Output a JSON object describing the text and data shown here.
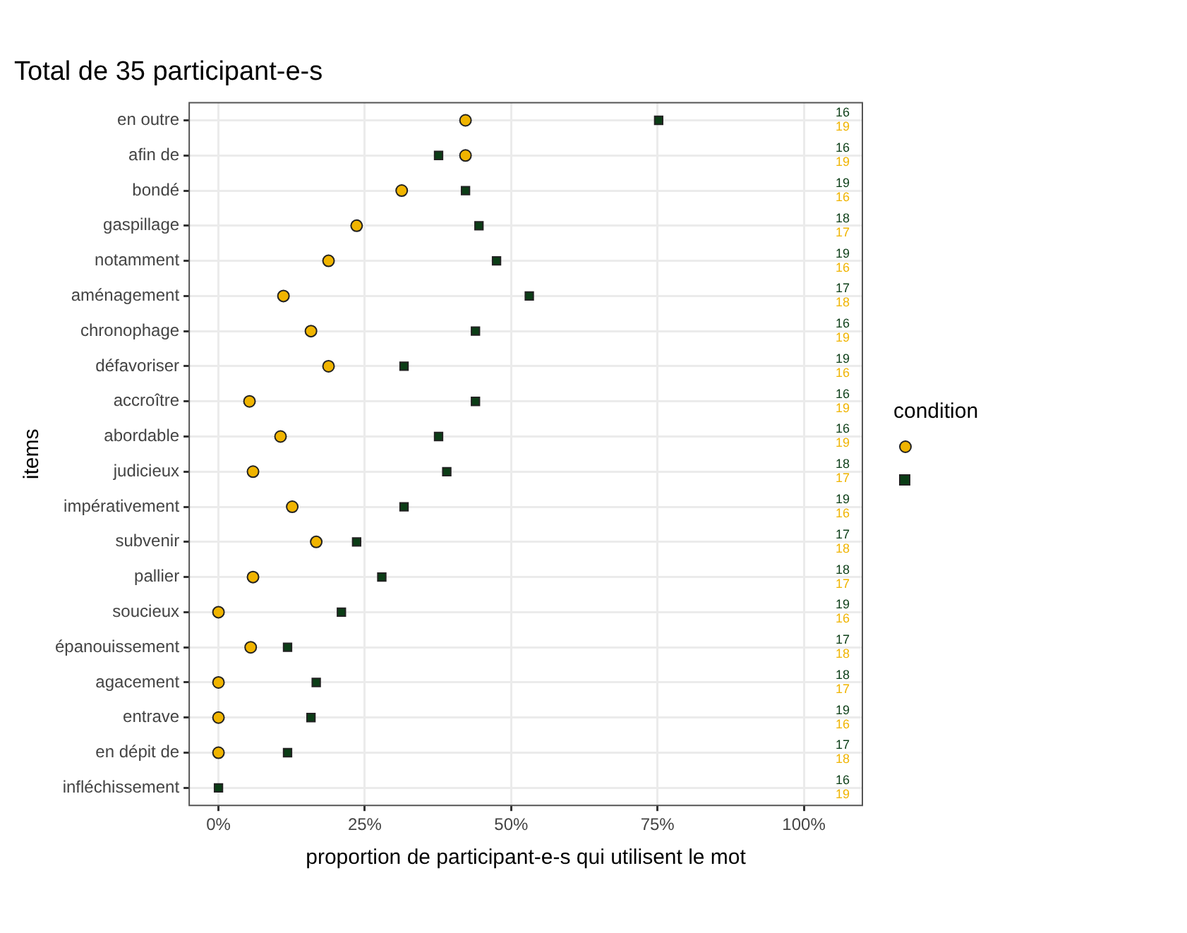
{
  "chart_data": {
    "type": "scatter",
    "orientation": "horizontal",
    "title": "Total de 35 participant-e-s",
    "xlabel": "proportion de participant-e-s qui utilisent le mot",
    "ylabel": "items",
    "legend_title": "condition",
    "grid": true,
    "categories": [
      "en outre",
      "afin de",
      "bondé",
      "gaspillage",
      "notamment",
      "aménagement",
      "chronophage",
      "défavoriser",
      "accroître",
      "abordable",
      "judicieux",
      "impérativement",
      "subvenir",
      "pallier",
      "soucieux",
      "épanouissement",
      "agacement",
      "entrave",
      "en dépit de",
      "infléchissement"
    ],
    "xlim": [
      -5,
      110
    ],
    "xticks": [
      {
        "value": 0,
        "label": "0%"
      },
      {
        "value": 25,
        "label": "25%"
      },
      {
        "value": 50,
        "label": "50%"
      },
      {
        "value": 75,
        "label": "75%"
      },
      {
        "value": 100,
        "label": "100%"
      }
    ],
    "series": [
      {
        "color": "#f0b400",
        "marker": "circle",
        "values": [
          42.2,
          42.2,
          31.3,
          23.6,
          18.8,
          11.1,
          15.8,
          18.8,
          5.3,
          10.6,
          5.9,
          12.6,
          16.7,
          5.9,
          0,
          5.5,
          0,
          0,
          0,
          null
        ]
      },
      {
        "color": "#0b3d16",
        "marker": "square",
        "values": [
          75.2,
          37.6,
          42.2,
          44.5,
          47.5,
          53.1,
          43.9,
          31.7,
          43.9,
          37.6,
          39.0,
          31.7,
          23.6,
          27.9,
          21.0,
          11.8,
          16.7,
          15.8,
          11.8,
          0
        ]
      }
    ],
    "annotations": [
      "16",
      "19",
      "16",
      "19",
      "19",
      "16",
      "18",
      "17",
      "19",
      "16",
      "17",
      "18",
      "16",
      "19",
      "19",
      "16",
      "16",
      "19",
      "16",
      "19",
      "18",
      "17",
      "19",
      "16",
      "17",
      "18",
      "18",
      "17",
      "19",
      "16",
      "17",
      "18",
      "18",
      "17",
      "19",
      "16",
      "17",
      "18",
      "16",
      "19"
    ]
  }
}
